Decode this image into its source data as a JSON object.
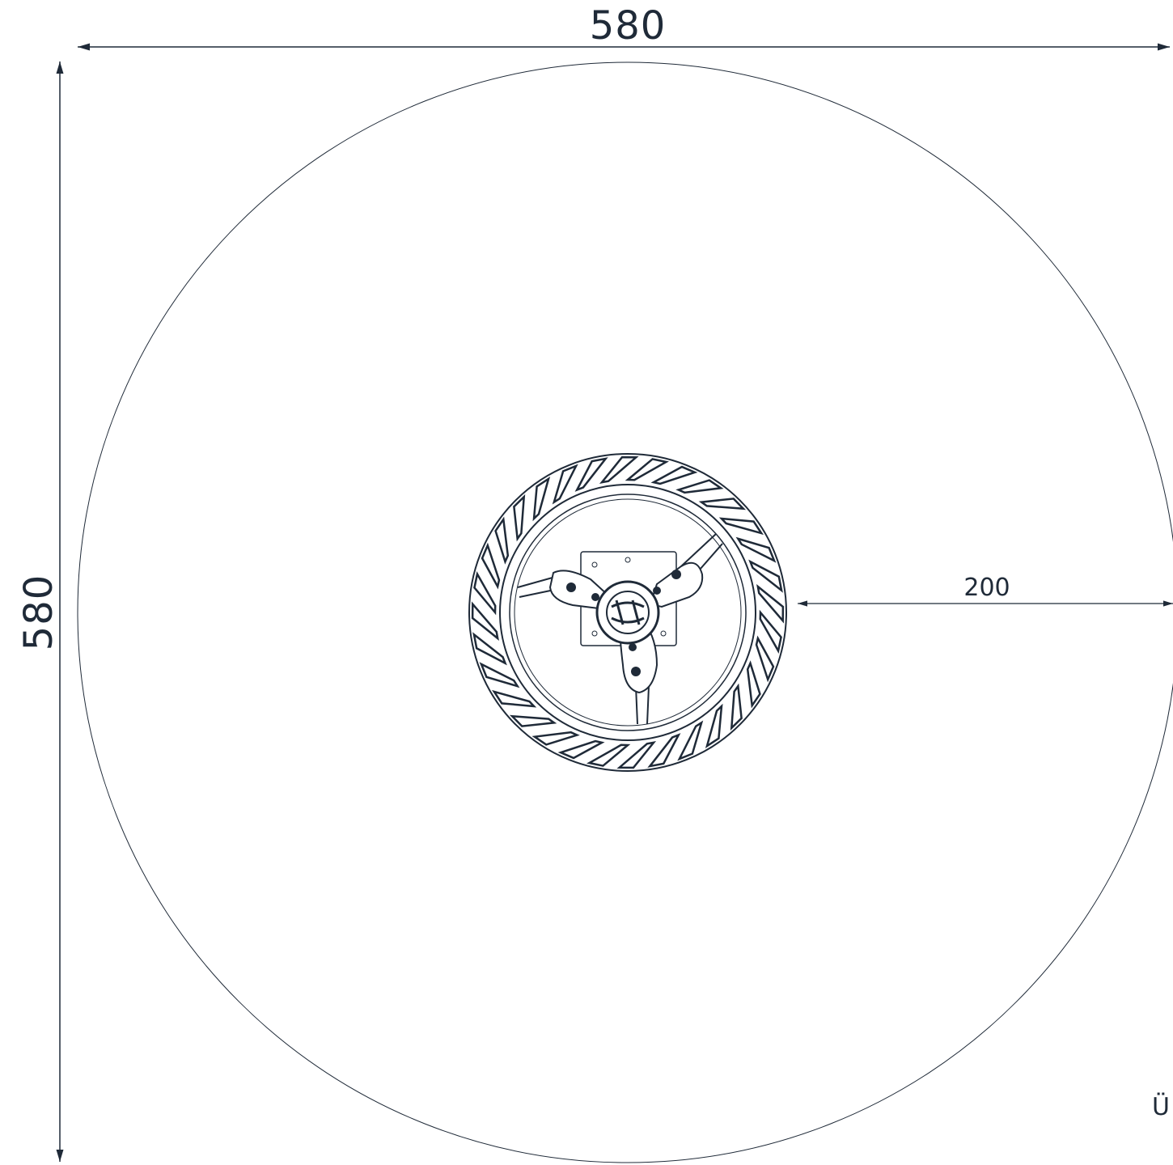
{
  "drawing": {
    "width_label": "580",
    "height_label": "580",
    "radius_label": "200",
    "corner_label": "Ü",
    "colors": {
      "line": "#1f2a38",
      "background": "#ffffff"
    }
  }
}
